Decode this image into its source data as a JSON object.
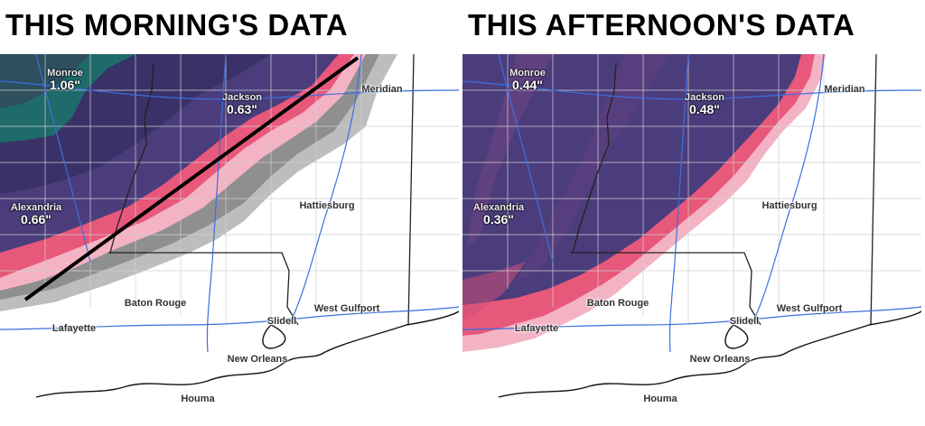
{
  "panels": [
    {
      "title": "THIS MORNING'S DATA",
      "cities": {
        "monroe": {
          "name": "Monroe",
          "value": "1.06\""
        },
        "jackson": {
          "name": "Jackson",
          "value": "0.63\""
        },
        "meridian": {
          "name": "Meridian"
        },
        "alexandria": {
          "name": "Alexandria",
          "value": "0.66\""
        },
        "hattiesburg": {
          "name": "Hattiesburg"
        },
        "baton_rouge": {
          "name": "Baton Rouge"
        },
        "west_gulfport": {
          "name": "West Gulfport"
        },
        "lafayette": {
          "name": "Lafayette"
        },
        "slidell": {
          "name": "Slidell"
        },
        "new_orleans": {
          "name": "New Orleans"
        },
        "houma": {
          "name": "Houma"
        }
      }
    },
    {
      "title": "THIS AFTERNOON'S DATA",
      "cities": {
        "monroe": {
          "name": "Monroe",
          "value": "0.44\""
        },
        "jackson": {
          "name": "Jackson",
          "value": "0.48\""
        },
        "meridian": {
          "name": "Meridian"
        },
        "alexandria": {
          "name": "Alexandria",
          "value": "0.36\""
        },
        "hattiesburg": {
          "name": "Hattiesburg"
        },
        "baton_rouge": {
          "name": "Baton Rouge"
        },
        "west_gulfport": {
          "name": "West Gulfport"
        },
        "lafayette": {
          "name": "Lafayette"
        },
        "slidell": {
          "name": "Slidell"
        },
        "new_orleans": {
          "name": "New Orleans"
        },
        "houma": {
          "name": "Houma"
        }
      }
    }
  ],
  "colors": {
    "heavy": "#1f6a6a",
    "moderate": "#4a3c78",
    "light": "#e85a78",
    "trace": "#f4b3c4",
    "gray": "#9a9a9a",
    "road": "#3b6fe0"
  }
}
